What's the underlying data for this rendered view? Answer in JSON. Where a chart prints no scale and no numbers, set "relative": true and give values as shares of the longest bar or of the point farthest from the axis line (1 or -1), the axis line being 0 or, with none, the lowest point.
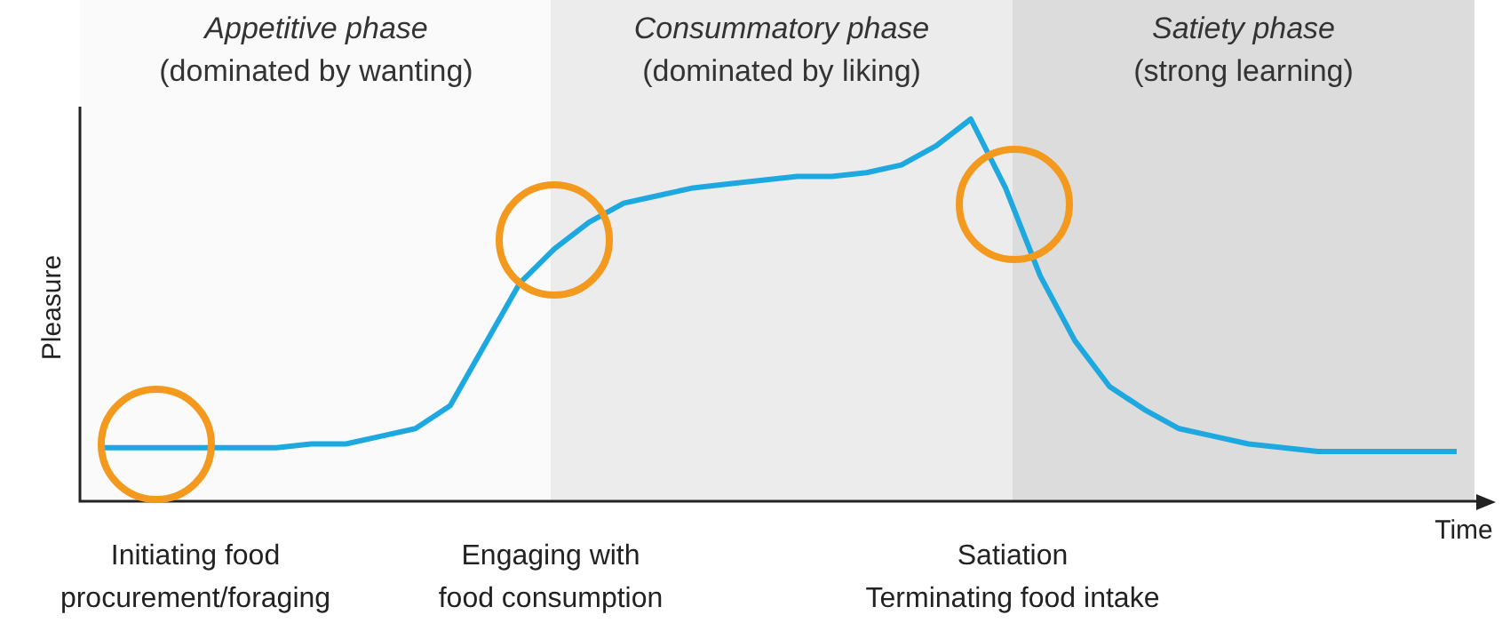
{
  "chart_data": {
    "type": "line",
    "relative": true,
    "xlabel": "Time",
    "ylabel": "Pleasure",
    "marker": "none",
    "categories": [
      null,
      null,
      null,
      null,
      null,
      null,
      null,
      null,
      null,
      null,
      null,
      null,
      null,
      null,
      null,
      null,
      null,
      null,
      null,
      null,
      null,
      null,
      null,
      null,
      null,
      null,
      null,
      null,
      null,
      null,
      null,
      null,
      null,
      null,
      null,
      null,
      null,
      null,
      null,
      null
    ],
    "values": [
      0.14,
      0.14,
      0.14,
      0.14,
      0.14,
      0.14,
      0.15,
      0.15,
      0.17,
      0.19,
      0.25,
      0.41,
      0.57,
      0.66,
      0.73,
      0.78,
      0.8,
      0.82,
      0.83,
      0.84,
      0.85,
      0.85,
      0.86,
      0.88,
      0.93,
      1,
      0.82,
      0.59,
      0.42,
      0.3,
      0.24,
      0.19,
      0.17,
      0.15,
      0.14,
      0.13,
      0.13,
      0.13,
      0.13,
      0.13
    ],
    "color": "#1ea8e0",
    "annotations": [
      "Appetitive phase\n(dominated by wanting)",
      "Consummatory phase\n(dominated by liking)",
      "Satiety phase\n(strong learning)",
      "Initiating food\nprocurement/foraging",
      "Engaging with\nfood consumption",
      "Satiation\nTerminating food intake"
    ]
  }
}
